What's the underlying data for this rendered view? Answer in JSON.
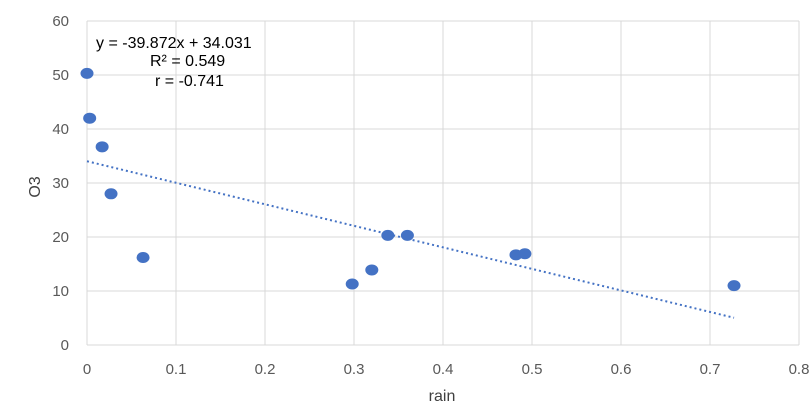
{
  "chart_data": {
    "type": "scatter",
    "title": "",
    "xlabel": "rain",
    "ylabel": "O3",
    "xlim": [
      0,
      0.8
    ],
    "ylim": [
      0,
      60
    ],
    "x_ticks": [
      "0",
      "0.1",
      "0.2",
      "0.3",
      "0.4",
      "0.5",
      "0.6",
      "0.7",
      "0.8"
    ],
    "y_ticks": [
      "0",
      "10",
      "20",
      "30",
      "40",
      "50",
      "60"
    ],
    "grid": true,
    "legend": "none",
    "series": [
      {
        "color": "#4472c4",
        "points": [
          {
            "x": 0.0,
            "y": 50.3
          },
          {
            "x": 0.003,
            "y": 42.0
          },
          {
            "x": 0.017,
            "y": 36.7
          },
          {
            "x": 0.027,
            "y": 28.0
          },
          {
            "x": 0.063,
            "y": 16.2
          },
          {
            "x": 0.298,
            "y": 11.3
          },
          {
            "x": 0.32,
            "y": 13.9
          },
          {
            "x": 0.338,
            "y": 20.3
          },
          {
            "x": 0.36,
            "y": 20.3
          },
          {
            "x": 0.482,
            "y": 16.7
          },
          {
            "x": 0.492,
            "y": 16.9
          },
          {
            "x": 0.727,
            "y": 11.0
          }
        ]
      }
    ],
    "trendline": {
      "type": "linear",
      "slope": -39.872,
      "intercept": 34.031,
      "x_range": [
        0,
        0.727
      ],
      "color": "#4472c4",
      "style": "dotted"
    },
    "annotations": [
      "y = -39.872x + 34.031",
      "R² = 0.549",
      "r = -0.741"
    ]
  }
}
